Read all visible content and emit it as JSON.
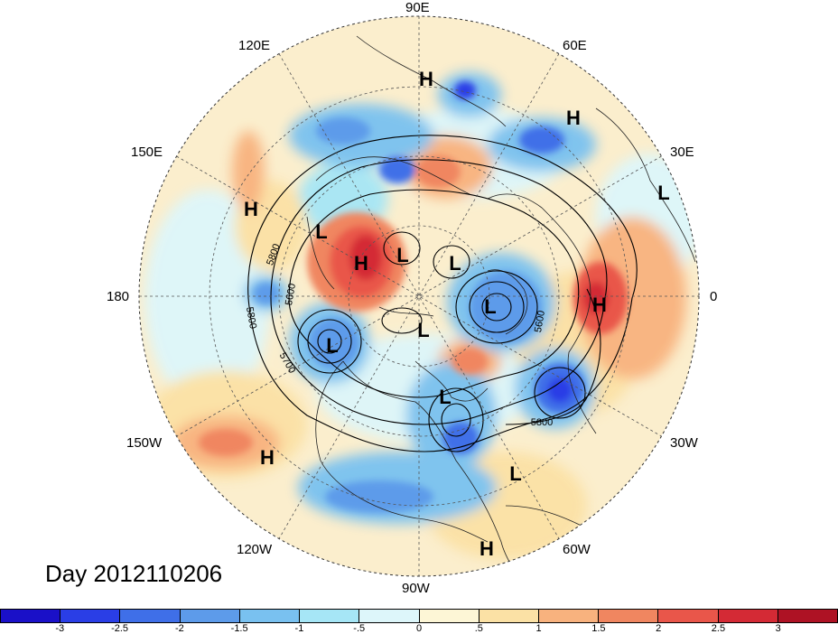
{
  "title": "Day 2012110206",
  "meridian_labels": [
    "90E",
    "60E",
    "30E",
    "0",
    "30W",
    "60W",
    "90W",
    "120W",
    "150W",
    "180",
    "150E",
    "120E"
  ],
  "pressure_centers": [
    "H",
    "H",
    "L",
    "H",
    "L",
    "H",
    "L",
    "L",
    "L",
    "L",
    "L",
    "L",
    "L",
    "H",
    "H",
    "H"
  ],
  "contour_labels": [
    "5800",
    "5600",
    "5800",
    "5700",
    "5600",
    "5800"
  ],
  "colorbar": {
    "colors": [
      "#1a10c8",
      "#2a3ee6",
      "#3f6fe8",
      "#5d9bea",
      "#79c1f0",
      "#a6e6f6",
      "#ddf6fa",
      "#fdf6d6",
      "#fbe1a5",
      "#f8b27e",
      "#f08660",
      "#e9564a",
      "#d42a35",
      "#ae1224"
    ],
    "tick_labels": [
      "-3",
      "-2.5",
      "-2",
      "-1.5",
      "-1",
      "-.5",
      "0",
      ".5",
      "1",
      "1.5",
      "2",
      "2.5",
      "3"
    ]
  },
  "colors": {
    "ocean_base": "#fbeecd",
    "land_line": "#222222",
    "contour": "#000000",
    "grid": "#555555"
  }
}
